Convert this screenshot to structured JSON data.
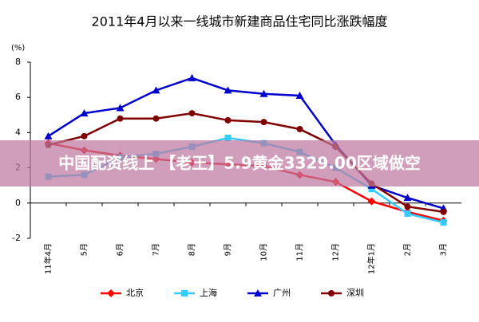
{
  "chart_data": {
    "type": "line",
    "title": "2011年4月以来一线城市新建商品住宅同比涨跌幅度",
    "y_unit": "(%)",
    "categories": [
      "11年4月",
      "5月",
      "6月",
      "7月",
      "8月",
      "9月",
      "10月",
      "11月",
      "12月",
      "12年1月",
      "2月",
      "3月"
    ],
    "ylim": [
      -2,
      8
    ],
    "yticks": [
      -2,
      0,
      2,
      4,
      6,
      8
    ],
    "series": [
      {
        "name": "北京",
        "color": "#ff0000",
        "marker": "diamond",
        "values": [
          3.4,
          3.0,
          2.7,
          2.5,
          2.3,
          2.2,
          2.1,
          1.6,
          1.2,
          0.1,
          -0.5,
          -1.0
        ]
      },
      {
        "name": "上海",
        "color": "#33ccff",
        "marker": "square",
        "values": [
          1.5,
          1.6,
          2.6,
          2.8,
          3.2,
          3.7,
          3.4,
          2.9,
          2.0,
          0.8,
          -0.6,
          -1.1
        ]
      },
      {
        "name": "广州",
        "color": "#0000cc",
        "marker": "triangle",
        "values": [
          3.8,
          5.1,
          5.4,
          6.4,
          7.1,
          6.4,
          6.2,
          6.1,
          3.3,
          1.0,
          0.3,
          -0.3
        ]
      },
      {
        "name": "深圳",
        "color": "#800000",
        "marker": "circle",
        "values": [
          3.3,
          3.8,
          4.8,
          4.8,
          5.1,
          4.7,
          4.6,
          4.2,
          3.2,
          1.1,
          -0.2,
          -0.5
        ]
      }
    ]
  },
  "overlay": {
    "text": "中国配资线上 【老王】5.9黄金3329.00区域做空"
  }
}
